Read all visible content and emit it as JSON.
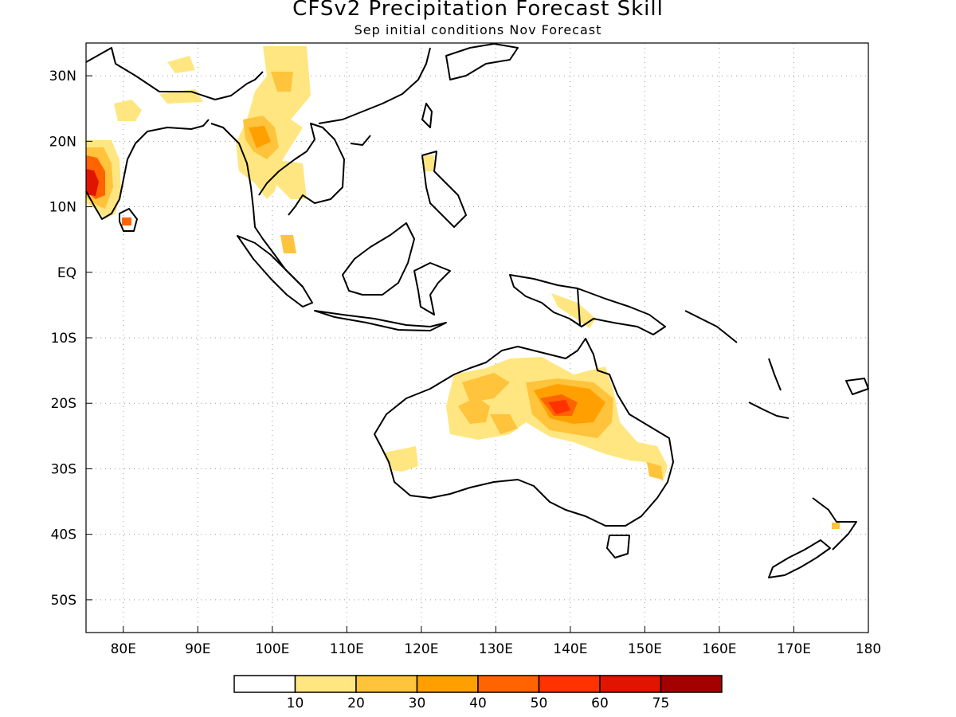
{
  "title": "CFSv2 Precipitation Forecast Skill",
  "subtitle": "Sep initial conditions  Nov Forecast",
  "map": {
    "lon_range": [
      75,
      180
    ],
    "lat_range": [
      -55,
      35
    ],
    "x_ticks": [
      "80E",
      "90E",
      "100E",
      "110E",
      "120E",
      "130E",
      "140E",
      "150E",
      "160E",
      "170E",
      "180"
    ],
    "y_ticks": [
      "30N",
      "20N",
      "10N",
      "EQ",
      "10S",
      "20S",
      "30S",
      "40S",
      "50S"
    ],
    "gridlines": true
  },
  "colorbar": {
    "labels": [
      "10",
      "20",
      "30",
      "40",
      "50",
      "60",
      "75"
    ],
    "colors": [
      "#ffffff",
      "#ffe680",
      "#ffc33c",
      "#ffa000",
      "#ff6400",
      "#ff3200",
      "#e11400",
      "#a50000"
    ]
  }
}
